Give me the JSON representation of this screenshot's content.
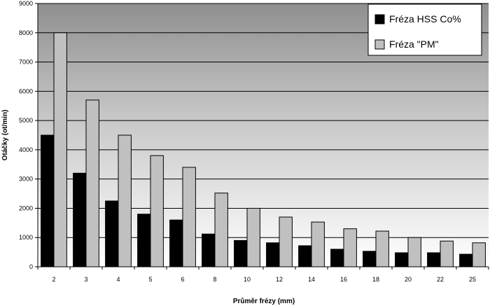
{
  "chart_data": {
    "type": "bar",
    "title": "",
    "xlabel": "Průměr frézy (mm)",
    "ylabel": "Otáčky (ot/min)",
    "ylim": [
      0,
      9000
    ],
    "yticks": [
      "0",
      "1000",
      "2000",
      "3000",
      "4000",
      "5000",
      "6000",
      "7000",
      "8000",
      "9000"
    ],
    "categories": [
      "2",
      "3",
      "4",
      "5",
      "6",
      "8",
      "10",
      "12",
      "14",
      "16",
      "18",
      "20",
      "22",
      "25"
    ],
    "series": [
      {
        "name": "Fréza HSS Co%",
        "color": "#000000",
        "values": [
          4500,
          3200,
          2250,
          1800,
          1600,
          1120,
          900,
          820,
          720,
          600,
          530,
          480,
          480,
          430
        ]
      },
      {
        "name": "Fréza \"PM\"",
        "color": "#c0c0c0",
        "values": [
          8000,
          5700,
          4500,
          3800,
          3400,
          2520,
          2000,
          1700,
          1530,
          1300,
          1220,
          1000,
          880,
          820
        ]
      }
    ],
    "grid": true,
    "legend_position": "top-right"
  }
}
